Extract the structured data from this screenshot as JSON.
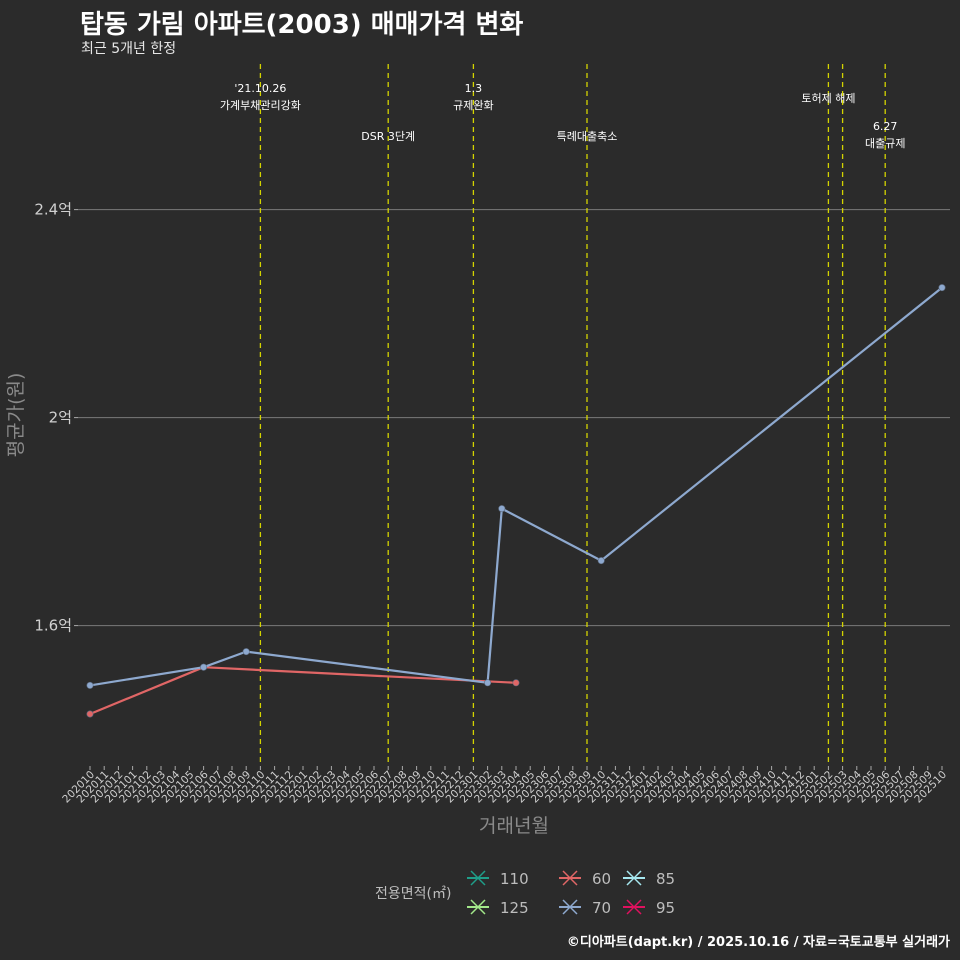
{
  "chart_data": {
    "type": "line",
    "title": "탑동 가림 아파트(2003) 매매가격 변화",
    "subtitle": "최근 5개년 한정",
    "xlabel": "거래년월",
    "ylabel": "평균가(원)",
    "caption": "©디아파트(dapt.kr) / 2025.10.16 / 자료=국토교통부 실거래가",
    "categories": [
      "202010",
      "202011",
      "202012",
      "202101",
      "202102",
      "202103",
      "202104",
      "202105",
      "202106",
      "202107",
      "202108",
      "202109",
      "202110",
      "202111",
      "202112",
      "202201",
      "202202",
      "202203",
      "202204",
      "202205",
      "202206",
      "202207",
      "202208",
      "202209",
      "202210",
      "202211",
      "202212",
      "202301",
      "202302",
      "202303",
      "202304",
      "202305",
      "202306",
      "202307",
      "202308",
      "202309",
      "202310",
      "202311",
      "202312",
      "202401",
      "202402",
      "202403",
      "202404",
      "202405",
      "202406",
      "202407",
      "202408",
      "202409",
      "202410",
      "202411",
      "202412",
      "202501",
      "202502",
      "202503",
      "202504",
      "202505",
      "202506",
      "202507",
      "202508",
      "202509",
      "202510"
    ],
    "y_ticks": [
      {
        "value": 1.6,
        "label": "1.6억"
      },
      {
        "value": 2.0,
        "label": "2억"
      },
      {
        "value": 2.4,
        "label": "2.4억"
      }
    ],
    "ylim": [
      1.33,
      2.68
    ],
    "series": [
      {
        "name": "60",
        "color": "#e06666",
        "points": [
          {
            "x": "202010",
            "y": 1.43
          },
          {
            "x": "202106",
            "y": 1.52
          },
          {
            "x": "202304",
            "y": 1.49
          }
        ]
      },
      {
        "name": "70",
        "color": "#8ea9cf",
        "points": [
          {
            "x": "202010",
            "y": 1.485
          },
          {
            "x": "202106",
            "y": 1.52
          },
          {
            "x": "202109",
            "y": 1.55
          },
          {
            "x": "202302",
            "y": 1.49
          },
          {
            "x": "202303",
            "y": 1.825
          },
          {
            "x": "202310",
            "y": 1.725
          },
          {
            "x": "202510",
            "y": 2.25
          }
        ]
      }
    ],
    "events": [
      {
        "x": "202110",
        "lines": [
          "'21.10.26",
          "가계부채관리강화"
        ],
        "row": 1
      },
      {
        "x": "202207",
        "lines": [
          "DSR 3단계"
        ],
        "row": 2
      },
      {
        "x": "202301",
        "lines": [
          "1.3",
          "규제완화"
        ],
        "row": 1
      },
      {
        "x": "202309",
        "lines": [
          "특례대출축소"
        ],
        "row": 2
      },
      {
        "x": "202502",
        "lines": [
          "토허제 해제"
        ],
        "row": 1
      },
      {
        "x": "202503",
        "lines": [],
        "row": 1
      },
      {
        "x": "202506",
        "lines": [
          "6.27",
          "대출규제"
        ],
        "row": 2
      }
    ],
    "legend": {
      "title": "전용면적(㎡)",
      "items": [
        {
          "label": "110",
          "color": "#1f9e89"
        },
        {
          "label": "60",
          "color": "#e06666"
        },
        {
          "label": "85",
          "color": "#a6e8f0"
        },
        {
          "label": "125",
          "color": "#a3e88a"
        },
        {
          "label": "70",
          "color": "#8ea9cf"
        },
        {
          "label": "95",
          "color": "#e0115f"
        }
      ]
    }
  }
}
